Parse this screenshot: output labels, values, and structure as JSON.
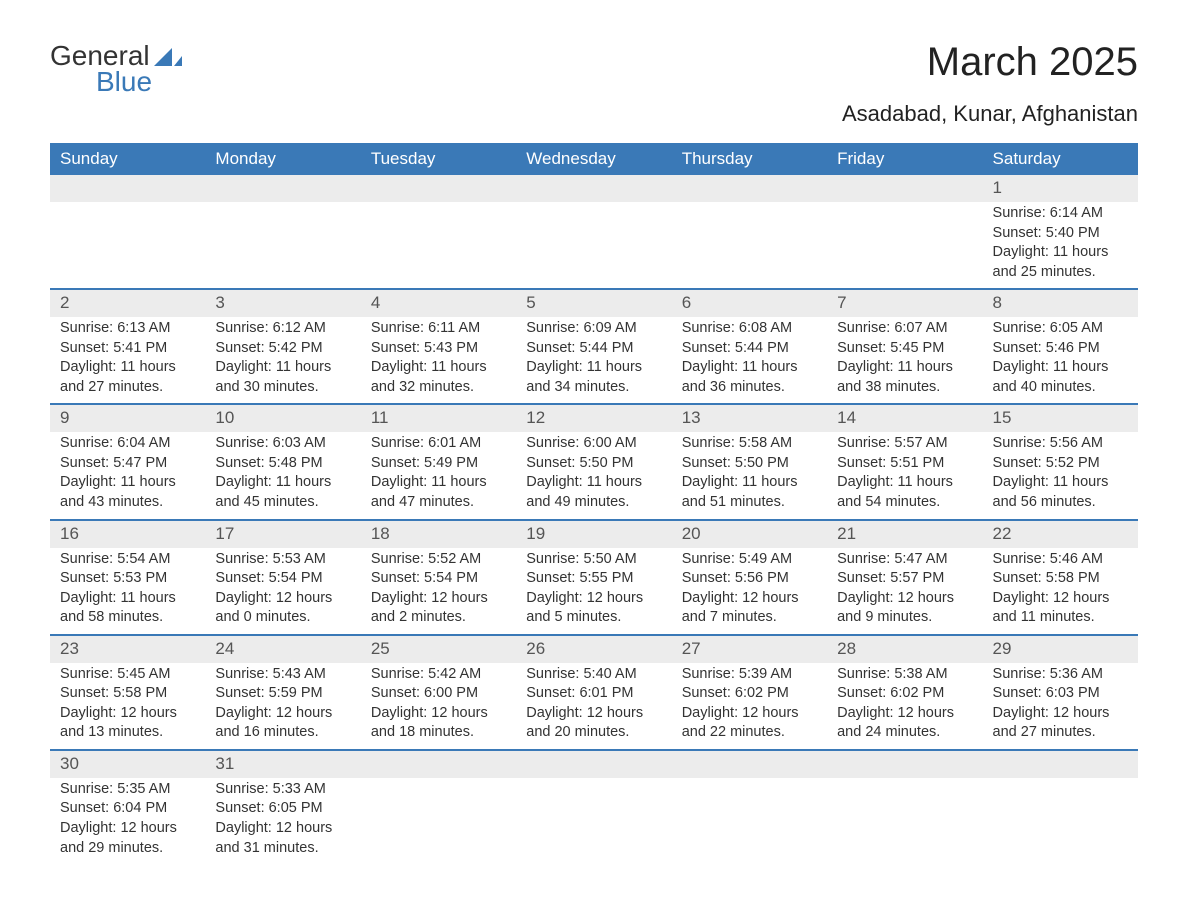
{
  "logo": {
    "part1": "General",
    "part2": "Blue",
    "color_primary": "#3a79b7",
    "color_text": "#333333"
  },
  "header": {
    "title": "March 2025",
    "location": "Asadabad, Kunar, Afghanistan"
  },
  "calendar": {
    "header_bg": "#3a79b7",
    "header_fg": "#ffffff",
    "daynum_bg": "#ececec",
    "rule_color": "#3a79b7",
    "body_bg": "#ffffff",
    "text_color": "#333333",
    "columns": [
      "Sunday",
      "Monday",
      "Tuesday",
      "Wednesday",
      "Thursday",
      "Friday",
      "Saturday"
    ],
    "weeks": [
      [
        null,
        null,
        null,
        null,
        null,
        null,
        {
          "day": "1",
          "sunrise": "Sunrise: 6:14 AM",
          "sunset": "Sunset: 5:40 PM",
          "daylight1": "Daylight: 11 hours",
          "daylight2": "and 25 minutes."
        }
      ],
      [
        {
          "day": "2",
          "sunrise": "Sunrise: 6:13 AM",
          "sunset": "Sunset: 5:41 PM",
          "daylight1": "Daylight: 11 hours",
          "daylight2": "and 27 minutes."
        },
        {
          "day": "3",
          "sunrise": "Sunrise: 6:12 AM",
          "sunset": "Sunset: 5:42 PM",
          "daylight1": "Daylight: 11 hours",
          "daylight2": "and 30 minutes."
        },
        {
          "day": "4",
          "sunrise": "Sunrise: 6:11 AM",
          "sunset": "Sunset: 5:43 PM",
          "daylight1": "Daylight: 11 hours",
          "daylight2": "and 32 minutes."
        },
        {
          "day": "5",
          "sunrise": "Sunrise: 6:09 AM",
          "sunset": "Sunset: 5:44 PM",
          "daylight1": "Daylight: 11 hours",
          "daylight2": "and 34 minutes."
        },
        {
          "day": "6",
          "sunrise": "Sunrise: 6:08 AM",
          "sunset": "Sunset: 5:44 PM",
          "daylight1": "Daylight: 11 hours",
          "daylight2": "and 36 minutes."
        },
        {
          "day": "7",
          "sunrise": "Sunrise: 6:07 AM",
          "sunset": "Sunset: 5:45 PM",
          "daylight1": "Daylight: 11 hours",
          "daylight2": "and 38 minutes."
        },
        {
          "day": "8",
          "sunrise": "Sunrise: 6:05 AM",
          "sunset": "Sunset: 5:46 PM",
          "daylight1": "Daylight: 11 hours",
          "daylight2": "and 40 minutes."
        }
      ],
      [
        {
          "day": "9",
          "sunrise": "Sunrise: 6:04 AM",
          "sunset": "Sunset: 5:47 PM",
          "daylight1": "Daylight: 11 hours",
          "daylight2": "and 43 minutes."
        },
        {
          "day": "10",
          "sunrise": "Sunrise: 6:03 AM",
          "sunset": "Sunset: 5:48 PM",
          "daylight1": "Daylight: 11 hours",
          "daylight2": "and 45 minutes."
        },
        {
          "day": "11",
          "sunrise": "Sunrise: 6:01 AM",
          "sunset": "Sunset: 5:49 PM",
          "daylight1": "Daylight: 11 hours",
          "daylight2": "and 47 minutes."
        },
        {
          "day": "12",
          "sunrise": "Sunrise: 6:00 AM",
          "sunset": "Sunset: 5:50 PM",
          "daylight1": "Daylight: 11 hours",
          "daylight2": "and 49 minutes."
        },
        {
          "day": "13",
          "sunrise": "Sunrise: 5:58 AM",
          "sunset": "Sunset: 5:50 PM",
          "daylight1": "Daylight: 11 hours",
          "daylight2": "and 51 minutes."
        },
        {
          "day": "14",
          "sunrise": "Sunrise: 5:57 AM",
          "sunset": "Sunset: 5:51 PM",
          "daylight1": "Daylight: 11 hours",
          "daylight2": "and 54 minutes."
        },
        {
          "day": "15",
          "sunrise": "Sunrise: 5:56 AM",
          "sunset": "Sunset: 5:52 PM",
          "daylight1": "Daylight: 11 hours",
          "daylight2": "and 56 minutes."
        }
      ],
      [
        {
          "day": "16",
          "sunrise": "Sunrise: 5:54 AM",
          "sunset": "Sunset: 5:53 PM",
          "daylight1": "Daylight: 11 hours",
          "daylight2": "and 58 minutes."
        },
        {
          "day": "17",
          "sunrise": "Sunrise: 5:53 AM",
          "sunset": "Sunset: 5:54 PM",
          "daylight1": "Daylight: 12 hours",
          "daylight2": "and 0 minutes."
        },
        {
          "day": "18",
          "sunrise": "Sunrise: 5:52 AM",
          "sunset": "Sunset: 5:54 PM",
          "daylight1": "Daylight: 12 hours",
          "daylight2": "and 2 minutes."
        },
        {
          "day": "19",
          "sunrise": "Sunrise: 5:50 AM",
          "sunset": "Sunset: 5:55 PM",
          "daylight1": "Daylight: 12 hours",
          "daylight2": "and 5 minutes."
        },
        {
          "day": "20",
          "sunrise": "Sunrise: 5:49 AM",
          "sunset": "Sunset: 5:56 PM",
          "daylight1": "Daylight: 12 hours",
          "daylight2": "and 7 minutes."
        },
        {
          "day": "21",
          "sunrise": "Sunrise: 5:47 AM",
          "sunset": "Sunset: 5:57 PM",
          "daylight1": "Daylight: 12 hours",
          "daylight2": "and 9 minutes."
        },
        {
          "day": "22",
          "sunrise": "Sunrise: 5:46 AM",
          "sunset": "Sunset: 5:58 PM",
          "daylight1": "Daylight: 12 hours",
          "daylight2": "and 11 minutes."
        }
      ],
      [
        {
          "day": "23",
          "sunrise": "Sunrise: 5:45 AM",
          "sunset": "Sunset: 5:58 PM",
          "daylight1": "Daylight: 12 hours",
          "daylight2": "and 13 minutes."
        },
        {
          "day": "24",
          "sunrise": "Sunrise: 5:43 AM",
          "sunset": "Sunset: 5:59 PM",
          "daylight1": "Daylight: 12 hours",
          "daylight2": "and 16 minutes."
        },
        {
          "day": "25",
          "sunrise": "Sunrise: 5:42 AM",
          "sunset": "Sunset: 6:00 PM",
          "daylight1": "Daylight: 12 hours",
          "daylight2": "and 18 minutes."
        },
        {
          "day": "26",
          "sunrise": "Sunrise: 5:40 AM",
          "sunset": "Sunset: 6:01 PM",
          "daylight1": "Daylight: 12 hours",
          "daylight2": "and 20 minutes."
        },
        {
          "day": "27",
          "sunrise": "Sunrise: 5:39 AM",
          "sunset": "Sunset: 6:02 PM",
          "daylight1": "Daylight: 12 hours",
          "daylight2": "and 22 minutes."
        },
        {
          "day": "28",
          "sunrise": "Sunrise: 5:38 AM",
          "sunset": "Sunset: 6:02 PM",
          "daylight1": "Daylight: 12 hours",
          "daylight2": "and 24 minutes."
        },
        {
          "day": "29",
          "sunrise": "Sunrise: 5:36 AM",
          "sunset": "Sunset: 6:03 PM",
          "daylight1": "Daylight: 12 hours",
          "daylight2": "and 27 minutes."
        }
      ],
      [
        {
          "day": "30",
          "sunrise": "Sunrise: 5:35 AM",
          "sunset": "Sunset: 6:04 PM",
          "daylight1": "Daylight: 12 hours",
          "daylight2": "and 29 minutes."
        },
        {
          "day": "31",
          "sunrise": "Sunrise: 5:33 AM",
          "sunset": "Sunset: 6:05 PM",
          "daylight1": "Daylight: 12 hours",
          "daylight2": "and 31 minutes."
        },
        null,
        null,
        null,
        null,
        null
      ]
    ]
  }
}
